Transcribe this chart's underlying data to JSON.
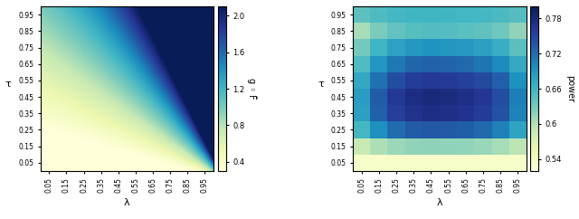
{
  "lambda_vals": [
    0.05,
    0.15,
    0.25,
    0.35,
    0.45,
    0.55,
    0.65,
    0.75,
    0.85,
    0.95
  ],
  "tau_vals": [
    0.05,
    0.15,
    0.25,
    0.35,
    0.45,
    0.55,
    0.65,
    0.75,
    0.85,
    0.95
  ],
  "colormap1": "YlGnBu",
  "colormap2": "YlGnBu",
  "clim1": [
    0.3,
    2.1
  ],
  "clim2": [
    0.52,
    0.8
  ],
  "cbar1_ticks": [
    0.4,
    0.8,
    1.2,
    1.6,
    2.0
  ],
  "cbar2_ticks": [
    0.54,
    0.6,
    0.66,
    0.72,
    0.78
  ],
  "cbar1_label": "g ◦ F̂",
  "cbar2_label": "power",
  "xlabel": "λ",
  "ylabel": "τ",
  "tick_labels": [
    "0.05",
    "0.15",
    "0.25",
    "0.35",
    "0.45",
    "0.55",
    "0.65",
    "0.75",
    "0.85",
    "0.95"
  ],
  "figsize": [
    6.4,
    2.42
  ],
  "dpi": 100
}
